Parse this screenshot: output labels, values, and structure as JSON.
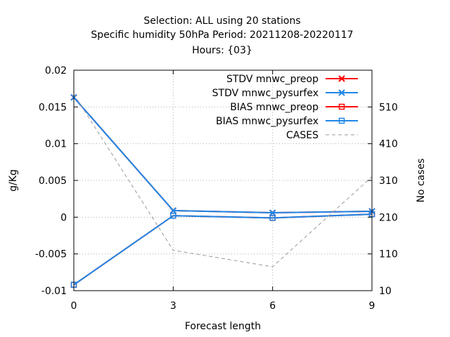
{
  "chart_data": {
    "type": "line",
    "title_lines": [
      "Selection: ALL using     20 stations",
      "Specific humidity 50hPa   Period: 20211208-20220117",
      "Hours: {03}"
    ],
    "xlabel": "Forecast length",
    "ylabel": "g/Kg",
    "y2label": "No cases",
    "x": [
      0,
      3,
      6,
      9
    ],
    "xlim": [
      0,
      9
    ],
    "ylim": [
      -0.01,
      0.02
    ],
    "y2lim": [
      10,
      610
    ],
    "xticks": [
      0,
      3,
      6,
      9
    ],
    "xtick_labels": [
      "0",
      "3",
      "6",
      "9"
    ],
    "yticks": [
      -0.01,
      -0.005,
      0,
      0.005,
      0.01,
      0.015,
      0.02
    ],
    "ytick_labels": [
      "-0.01",
      "-0.005",
      "0",
      "0.005",
      "0.01",
      "0.015",
      "0.02"
    ],
    "y2ticks": [
      10,
      110,
      210,
      310,
      410,
      510
    ],
    "y2tick_labels": [
      "10",
      "110",
      "210",
      "310",
      "410",
      "510"
    ],
    "grid": true,
    "legend_position": "top-right",
    "series": [
      {
        "name": "STDV mnwc_preop",
        "axis": "y",
        "values": [
          0.0163,
          0.0009,
          0.0006,
          0.0008
        ],
        "color": "#ff0000",
        "marker": "x",
        "dash": "solid"
      },
      {
        "name": "STDV mnwc_pysurfex",
        "axis": "y",
        "values": [
          0.0163,
          0.0009,
          0.0006,
          0.0008
        ],
        "color": "#1f86e6",
        "marker": "x",
        "dash": "solid"
      },
      {
        "name": "BIAS mnwc_preop",
        "axis": "y",
        "values": [
          -0.0092,
          0.0002,
          -0.0001,
          0.0004
        ],
        "color": "#ff0000",
        "marker": "square",
        "dash": "solid"
      },
      {
        "name": "BIAS mnwc_pysurfex",
        "axis": "y",
        "values": [
          -0.0092,
          0.0002,
          -0.0001,
          0.0004
        ],
        "color": "#1f86e6",
        "marker": "square",
        "dash": "solid"
      },
      {
        "name": "CASES",
        "axis": "y2",
        "values": [
          545,
          120,
          75,
          320
        ],
        "color": "#999999",
        "marker": "none",
        "dash": "dashed"
      }
    ]
  }
}
